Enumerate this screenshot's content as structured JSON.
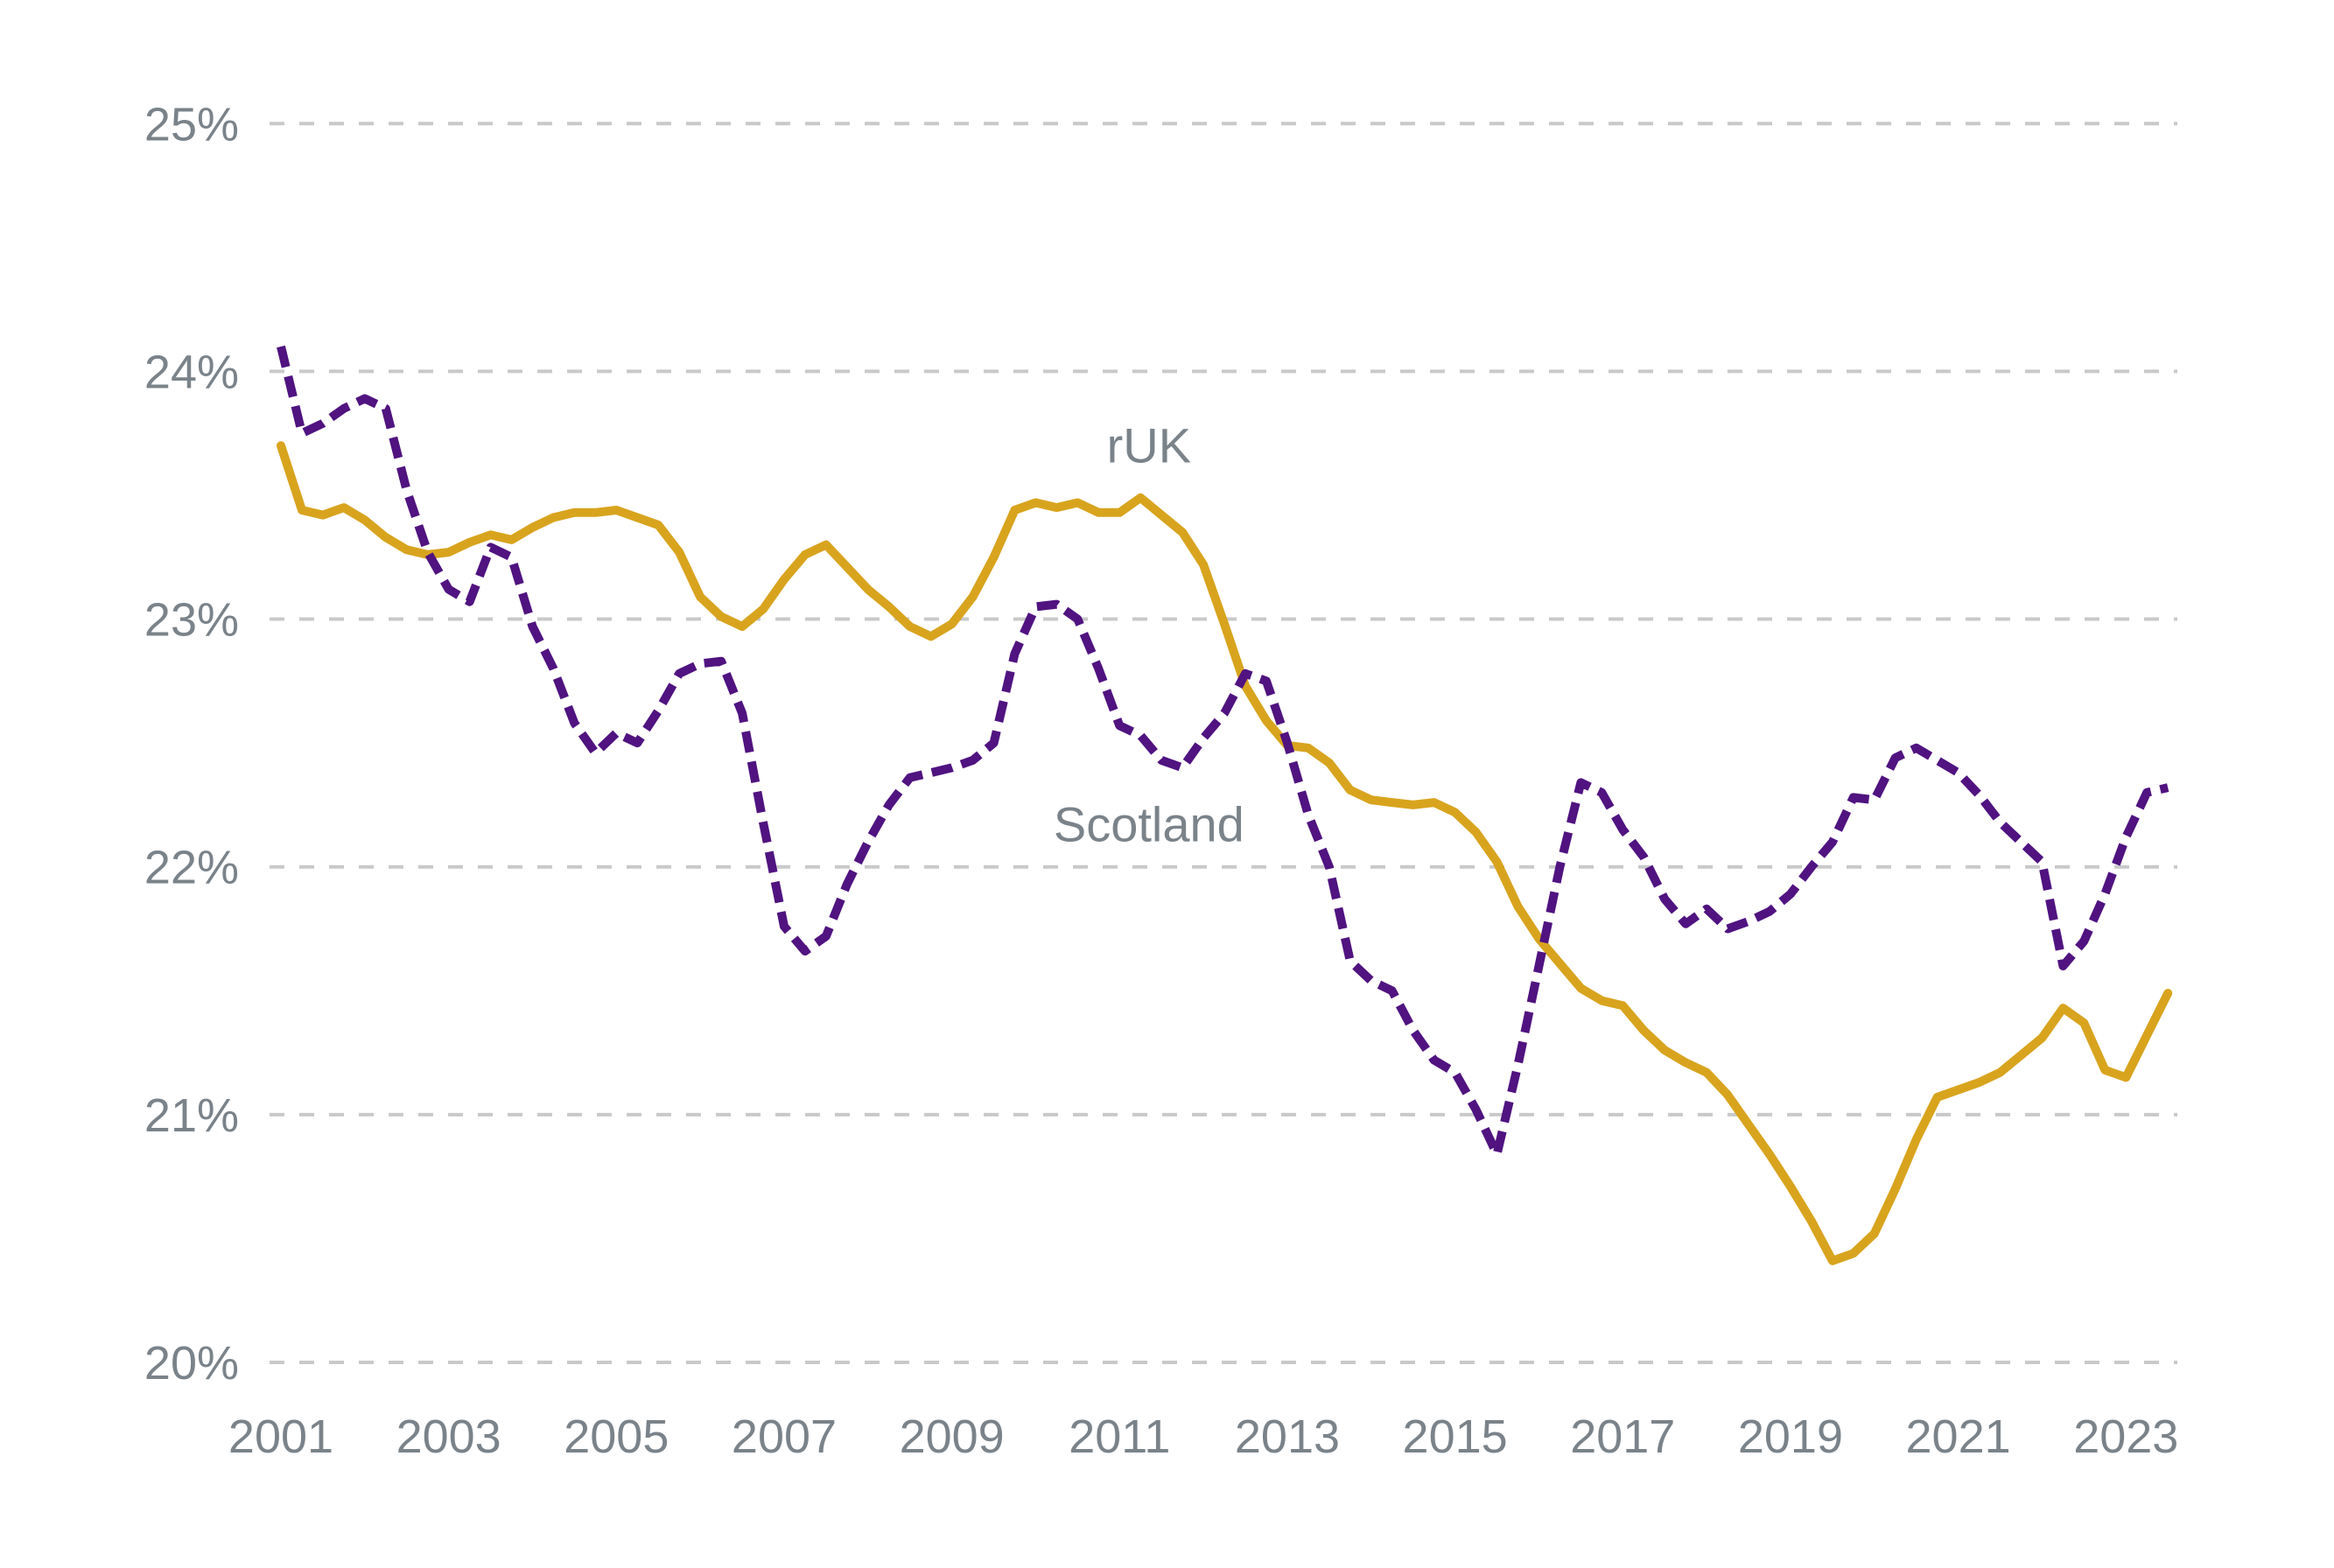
{
  "chart_data": {
    "type": "line",
    "title": "",
    "xlabel": "",
    "ylabel": "",
    "y_unit": "%",
    "grid": "horizontal-dashed",
    "legend": "inline-labels",
    "background_color": "#ffffff",
    "text_color": "#7A838A",
    "gridline_color": "#C9C9C9",
    "xlim": [
      2001,
      2023.5
    ],
    "ylim": [
      20,
      25
    ],
    "x_ticks": [
      {
        "value": 2001,
        "label": "2001"
      },
      {
        "value": 2003,
        "label": "2003"
      },
      {
        "value": 2005,
        "label": "2005"
      },
      {
        "value": 2007,
        "label": "2007"
      },
      {
        "value": 2009,
        "label": "2009"
      },
      {
        "value": 2011,
        "label": "2011"
      },
      {
        "value": 2013,
        "label": "2013"
      },
      {
        "value": 2015,
        "label": "2015"
      },
      {
        "value": 2017,
        "label": "2017"
      },
      {
        "value": 2019,
        "label": "2019"
      },
      {
        "value": 2021,
        "label": "2021"
      },
      {
        "value": 2023,
        "label": "2023"
      }
    ],
    "y_ticks": [
      {
        "value": 25,
        "label": "25%"
      },
      {
        "value": 24,
        "label": "24%"
      },
      {
        "value": 23,
        "label": "23%"
      },
      {
        "value": 22,
        "label": "22%"
      },
      {
        "value": 21,
        "label": "21%"
      },
      {
        "value": 20,
        "label": "20%"
      }
    ],
    "x": [
      2001,
      2001.25,
      2001.5,
      2001.75,
      2002,
      2002.25,
      2002.5,
      2002.75,
      2003,
      2003.25,
      2003.5,
      2003.75,
      2004,
      2004.25,
      2004.5,
      2004.75,
      2005,
      2005.25,
      2005.5,
      2005.75,
      2006,
      2006.25,
      2006.5,
      2006.75,
      2007,
      2007.25,
      2007.5,
      2007.75,
      2008,
      2008.25,
      2008.5,
      2008.75,
      2009,
      2009.25,
      2009.5,
      2009.75,
      2010,
      2010.25,
      2010.5,
      2010.75,
      2011,
      2011.25,
      2011.5,
      2011.75,
      2012,
      2012.25,
      2012.5,
      2012.75,
      2013,
      2013.25,
      2013.5,
      2013.75,
      2014,
      2014.25,
      2014.5,
      2014.75,
      2015,
      2015.25,
      2015.5,
      2015.75,
      2016,
      2016.25,
      2016.5,
      2016.75,
      2017,
      2017.25,
      2017.5,
      2017.75,
      2018,
      2018.25,
      2018.5,
      2018.75,
      2019,
      2019.25,
      2019.5,
      2019.75,
      2020,
      2020.25,
      2020.5,
      2020.75,
      2021,
      2021.25,
      2021.5,
      2021.75,
      2022,
      2022.25,
      2022.5,
      2022.75,
      2023,
      2023.25,
      2023.5
    ],
    "series": [
      {
        "name": "rUK",
        "color": "#D8A41E",
        "line_style": "solid",
        "label_position": {
          "x": 2011.35,
          "y": 23.7
        },
        "values": [
          23.7,
          23.44,
          23.42,
          23.45,
          23.4,
          23.33,
          23.28,
          23.26,
          23.27,
          23.31,
          23.34,
          23.32,
          23.37,
          23.41,
          23.43,
          23.43,
          23.44,
          23.41,
          23.38,
          23.27,
          23.09,
          23.01,
          22.97,
          23.04,
          23.16,
          23.26,
          23.3,
          23.21,
          23.12,
          23.05,
          22.97,
          22.93,
          22.98,
          23.09,
          23.25,
          23.44,
          23.47,
          23.45,
          23.47,
          23.43,
          23.43,
          23.49,
          23.42,
          23.35,
          23.22,
          22.98,
          22.73,
          22.59,
          22.49,
          22.48,
          22.42,
          22.31,
          22.27,
          22.26,
          22.25,
          22.26,
          22.22,
          22.14,
          22.02,
          21.84,
          21.71,
          21.61,
          21.51,
          21.46,
          21.44,
          21.34,
          21.26,
          21.21,
          21.17,
          21.08,
          20.96,
          20.84,
          20.71,
          20.57,
          20.41,
          20.44,
          20.52,
          20.7,
          20.9,
          21.07,
          21.1,
          21.13,
          21.17,
          21.24,
          21.31,
          21.43,
          21.37,
          21.18,
          21.15,
          21.32,
          21.49
        ]
      },
      {
        "name": "Scotland",
        "color": "#501380",
        "line_style": "dashed",
        "label_position": {
          "x": 2011.35,
          "y": 22.17
        },
        "values": [
          24.1,
          23.75,
          23.79,
          23.85,
          23.89,
          23.85,
          23.52,
          23.27,
          23.12,
          23.07,
          23.29,
          23.25,
          22.97,
          22.8,
          22.58,
          22.46,
          22.54,
          22.5,
          22.63,
          22.78,
          22.82,
          22.83,
          22.62,
          22.18,
          21.76,
          21.66,
          21.72,
          21.93,
          22.1,
          22.25,
          22.36,
          22.38,
          22.4,
          22.43,
          22.5,
          22.86,
          23.05,
          23.06,
          23.0,
          22.8,
          22.57,
          22.53,
          22.43,
          22.4,
          22.52,
          22.62,
          22.78,
          22.75,
          22.5,
          22.21,
          22.0,
          21.62,
          21.54,
          21.5,
          21.34,
          21.22,
          21.17,
          21.02,
          20.84,
          21.2,
          21.6,
          22.0,
          22.34,
          22.3,
          22.15,
          22.04,
          21.87,
          21.77,
          21.83,
          21.75,
          21.78,
          21.82,
          21.89,
          22.0,
          22.1,
          22.28,
          22.27,
          22.44,
          22.48,
          22.43,
          22.38,
          22.29,
          22.18,
          22.1,
          22.02,
          21.6,
          21.7,
          21.89,
          22.12,
          22.3,
          22.32
        ]
      }
    ]
  }
}
